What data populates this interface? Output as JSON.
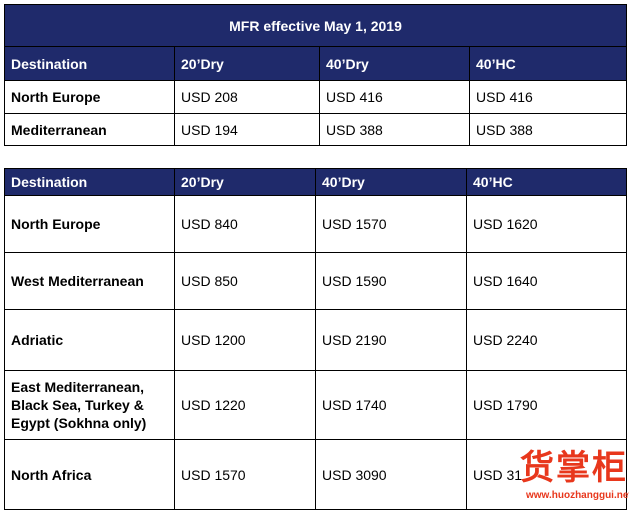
{
  "table1": {
    "title": "MFR effective May 1, 2019",
    "headers": [
      "Destination",
      "20’Dry",
      "40’Dry",
      "40’HC"
    ],
    "rows": [
      {
        "destination": "North Europe",
        "dry20": "USD 208",
        "dry40": "USD 416",
        "hc40": "USD 416"
      },
      {
        "destination": "Mediterranean",
        "dry20": "USD 194",
        "dry40": "USD 388",
        "hc40": "USD 388"
      }
    ]
  },
  "table2": {
    "headers": [
      "Destination",
      "20’Dry",
      "40’Dry",
      "40’HC"
    ],
    "rows": [
      {
        "destination": "North Europe",
        "dry20": "USD 840",
        "dry40": "USD 1570",
        "hc40": "USD 1620"
      },
      {
        "destination": "West Mediterranean",
        "dry20": "USD 850",
        "dry40": "USD 1590",
        "hc40": "USD 1640"
      },
      {
        "destination": "Adriatic",
        "dry20": "USD 1200",
        "dry40": "USD 2190",
        "hc40": "USD 2240"
      },
      {
        "destination": "East Mediterranean, Black Sea, Turkey & Egypt (Sokhna only)",
        "dry20": "USD 1220",
        "dry40": "USD 1740",
        "hc40": "USD 1790"
      },
      {
        "destination": "North Africa",
        "dry20": "USD 1570",
        "dry40": "USD 3090",
        "hc40": "USD 31"
      }
    ]
  },
  "watermark": {
    "text": "货掌柜",
    "url": "www.huozhanggui.net",
    "color": "#e8371c"
  },
  "colors": {
    "header_bg": "#1f2a6b",
    "header_text": "#ffffff"
  }
}
